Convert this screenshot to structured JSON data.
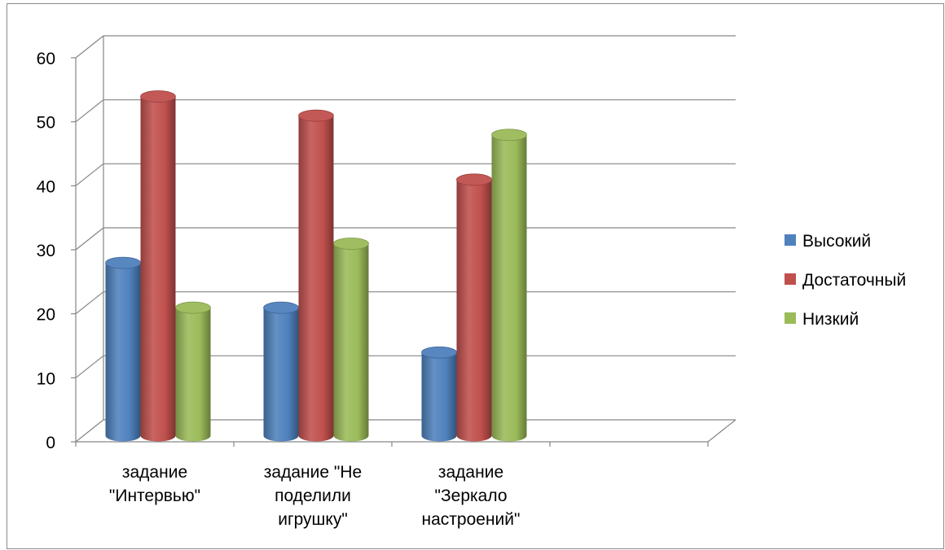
{
  "chart_data": {
    "type": "bar",
    "title": "",
    "xlabel": "",
    "ylabel": "",
    "ylim": [
      0,
      60
    ],
    "yticks": [
      "0",
      "10",
      "20",
      "30",
      "40",
      "50",
      "60"
    ],
    "grid": true,
    "legend_position": "right",
    "categories": [
      [
        "задание",
        "\"Интервью\""
      ],
      [
        "задание \"Не",
        "поделили",
        "игрушку\""
      ],
      [
        "задание",
        "\"Зеркало",
        "настроений\""
      ]
    ],
    "series": [
      {
        "name": "Высокий",
        "color": "#4F81BD",
        "values": [
          27,
          20,
          13
        ]
      },
      {
        "name": "Достаточный",
        "color": "#C0504D",
        "values": [
          53,
          50,
          40
        ]
      },
      {
        "name": "Низкий",
        "color": "#9BBB59",
        "values": [
          20,
          30,
          47
        ]
      }
    ]
  }
}
